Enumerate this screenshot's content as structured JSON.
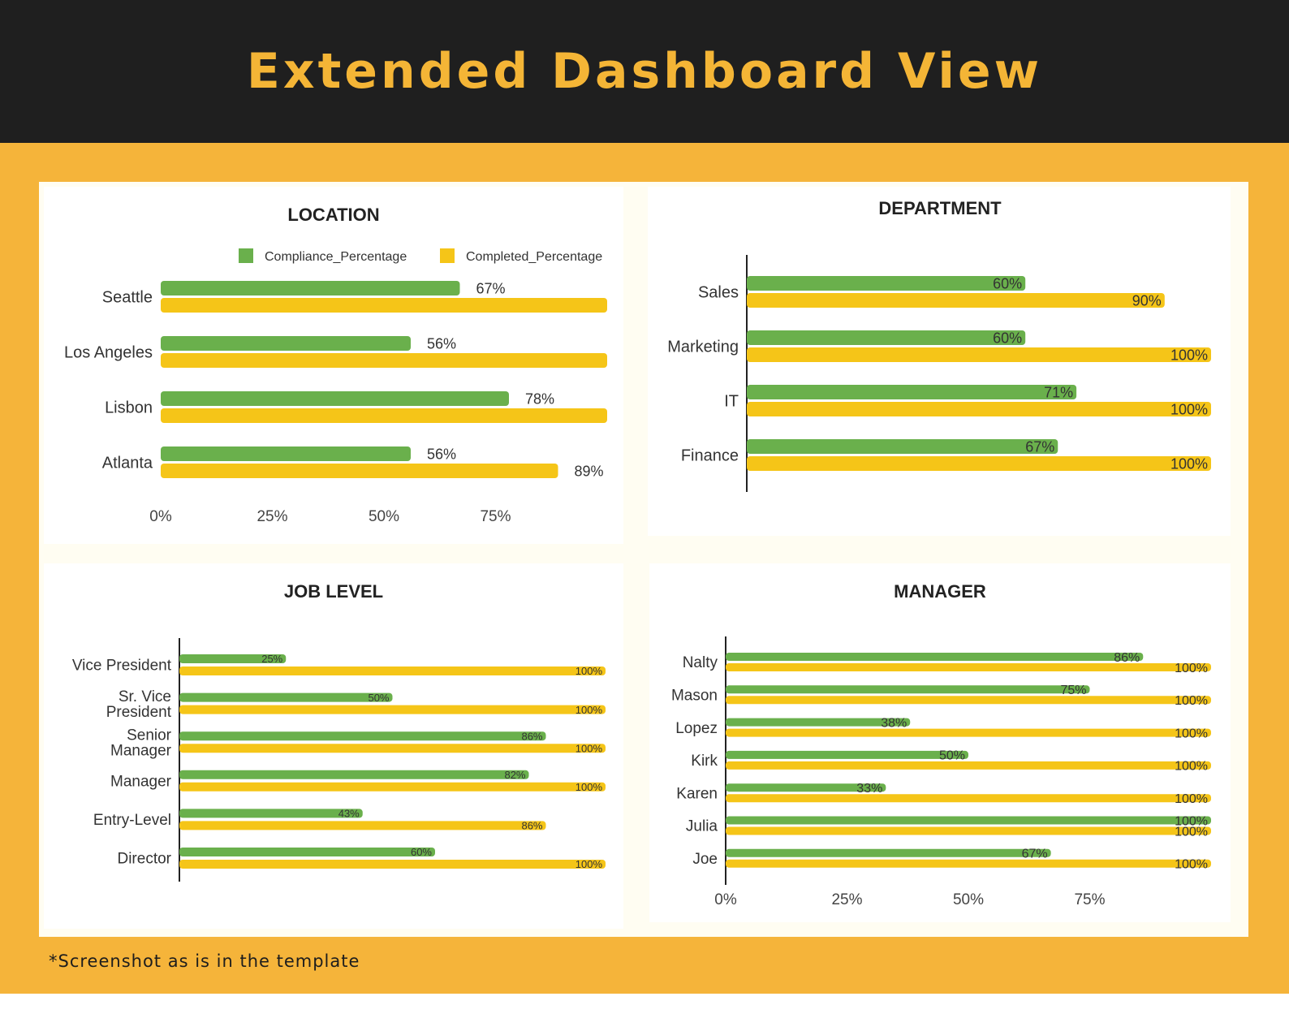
{
  "header": {
    "title": "Extended Dashboard View"
  },
  "footnote": "*Screenshot as is in the template",
  "colors": {
    "compliance": "#6ab04c",
    "completed": "#f5c518",
    "header_bg": "#1f1f1f",
    "accent": "#f4b536"
  },
  "legend": {
    "compliance": "Compliance_Percentage",
    "completed": "Completed_Percentage"
  },
  "chart_data": [
    {
      "id": "location",
      "type": "bar",
      "orientation": "horizontal",
      "title": "LOCATION",
      "categories": [
        "Seattle",
        "Los Angeles",
        "Lisbon",
        "Atlanta"
      ],
      "series": [
        {
          "name": "Compliance_Percentage",
          "values": [
            67,
            56,
            78,
            56
          ],
          "labels": [
            "67%",
            "56%",
            "78%",
            "56%"
          ]
        },
        {
          "name": "Completed_Percentage",
          "values": [
            100,
            100,
            100,
            89
          ],
          "labels": [
            "",
            "",
            "",
            "89%"
          ]
        }
      ],
      "xlim": [
        0,
        100
      ],
      "ticks": [
        "0%",
        "25%",
        "50%",
        "75%"
      ],
      "legend": "top-right",
      "grid": false
    },
    {
      "id": "department",
      "type": "bar",
      "orientation": "horizontal",
      "title": "DEPARTMENT",
      "categories": [
        "Sales",
        "Marketing",
        "IT",
        "Finance"
      ],
      "series": [
        {
          "name": "Compliance_Percentage",
          "values": [
            60,
            60,
            71,
            67
          ],
          "labels": [
            "60%",
            "60%",
            "71%",
            "67%"
          ]
        },
        {
          "name": "Completed_Percentage",
          "values": [
            90,
            100,
            100,
            100
          ],
          "labels": [
            "90%",
            "100%",
            "100%",
            "100%"
          ]
        }
      ],
      "xlim": [
        0,
        100
      ],
      "ticks": [],
      "legend": "none",
      "grid": false
    },
    {
      "id": "job_level",
      "type": "bar",
      "orientation": "horizontal",
      "title": "JOB LEVEL",
      "categories": [
        "Vice President",
        "Sr. Vice President",
        "Senior Manager",
        "Manager",
        "Entry-Level",
        "Director"
      ],
      "category_lines": [
        [
          "Vice President"
        ],
        [
          "Sr. Vice",
          "President"
        ],
        [
          "Senior",
          "Manager"
        ],
        [
          "Manager"
        ],
        [
          "Entry-Level"
        ],
        [
          "Director"
        ]
      ],
      "series": [
        {
          "name": "Compliance_Percentage",
          "values": [
            25,
            50,
            86,
            82,
            43,
            60
          ],
          "labels": [
            "25%",
            "50%",
            "86%",
            "82%",
            "43%",
            "60%"
          ]
        },
        {
          "name": "Completed_Percentage",
          "values": [
            100,
            100,
            100,
            100,
            86,
            100
          ],
          "labels": [
            "100%",
            "100%",
            "100%",
            "100%",
            "86%",
            "100%"
          ]
        }
      ],
      "xlim": [
        0,
        100
      ],
      "ticks": [],
      "legend": "none",
      "grid": false
    },
    {
      "id": "manager",
      "type": "bar",
      "orientation": "horizontal",
      "title": "MANAGER",
      "categories": [
        "Nalty",
        "Mason",
        "Lopez",
        "Kirk",
        "Karen",
        "Julia",
        "Joe"
      ],
      "series": [
        {
          "name": "Compliance_Percentage",
          "values": [
            86,
            75,
            38,
            50,
            33,
            100,
            67
          ],
          "labels": [
            "86%",
            "75%",
            "38%",
            "50%",
            "33%",
            "100%",
            "67%"
          ]
        },
        {
          "name": "Completed_Percentage",
          "values": [
            100,
            100,
            100,
            100,
            100,
            100,
            100
          ],
          "labels": [
            "100%",
            "100%",
            "100%",
            "100%",
            "100%",
            "100%",
            "100%"
          ]
        }
      ],
      "xlim": [
        0,
        100
      ],
      "ticks": [
        "0%",
        "25%",
        "50%",
        "75%"
      ],
      "legend": "none",
      "grid": false
    }
  ]
}
